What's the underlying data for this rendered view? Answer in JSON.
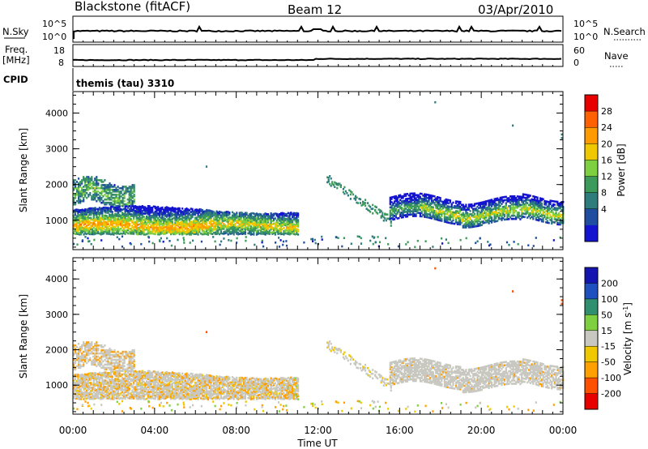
{
  "header": {
    "station": "Blackstone (fitACF)",
    "beam": "Beam 12",
    "date": "03/Apr/2010"
  },
  "top_panels": {
    "nsky_label": "N.Sky",
    "nsearch_label": "N.Search",
    "left_ticks_top": [
      "10^5",
      "10^0"
    ],
    "right_ticks_top": [
      "10^5",
      "10^0"
    ],
    "freq_label_line1": "Freq.",
    "freq_label_line2": "[MHz]",
    "freq_ticks": [
      "18",
      "8"
    ],
    "nave_label": "Nave",
    "nave_ticks": [
      "60",
      "0"
    ],
    "cpid_label": "CPID",
    "cpid_text": "themis (tau) 3310"
  },
  "chart_data": [
    {
      "type": "heatmap",
      "panel": "power",
      "ylabel": "Slant Range [km]",
      "xlabel": "Time UT",
      "y_ticks": [
        "1000",
        "2000",
        "3000",
        "4000"
      ],
      "ylim": [
        180,
        4600
      ],
      "x_ticks": [
        "00:00",
        "04:00",
        "08:00",
        "12:00",
        "16:00",
        "20:00",
        "00:00"
      ],
      "xlim_hours": [
        0,
        24
      ],
      "colorbar": {
        "label": "Power [dB]",
        "ticks": [
          "28",
          "24",
          "20",
          "16",
          "12",
          "8",
          "4"
        ],
        "colors": [
          "#e80000",
          "#ff6000",
          "#ff9a00",
          "#f0c800",
          "#7fd040",
          "#3c9a5a",
          "#2f7c7c",
          "#1f4ea0",
          "#1414d0"
        ]
      },
      "features": [
        {
          "hours": [
            0,
            3
          ],
          "range_km": [
            1300,
            2300
          ],
          "level": "low"
        },
        {
          "hours": [
            0,
            11
          ],
          "range_km": [
            600,
            1400
          ],
          "level": "high"
        },
        {
          "hours": [
            12.5,
            15.5
          ],
          "range_km": [
            900,
            2200
          ],
          "level": "low"
        },
        {
          "hours": [
            15.5,
            24
          ],
          "range_km": [
            900,
            1700
          ],
          "level": "high"
        }
      ]
    },
    {
      "type": "heatmap",
      "panel": "velocity",
      "ylabel": "Slant Range [km]",
      "xlabel": "Time UT",
      "y_ticks": [
        "1000",
        "2000",
        "3000",
        "4000"
      ],
      "ylim": [
        180,
        4600
      ],
      "x_ticks": [
        "00:00",
        "04:00",
        "08:00",
        "12:00",
        "16:00",
        "20:00",
        "00:00"
      ],
      "xlim_hours": [
        0,
        24
      ],
      "colorbar": {
        "label": "Velocity [m s",
        "label_sup": "-1",
        "label_end": "]",
        "ticks": [
          "200",
          "100",
          "50",
          "15",
          "-15",
          "-50",
          "-100",
          "-200"
        ],
        "colors": [
          "#1414b0",
          "#1e50c0",
          "#2f8f6f",
          "#7fd040",
          "#c8c8c0",
          "#f0c800",
          "#ffa000",
          "#ff5000",
          "#e80000"
        ]
      }
    }
  ]
}
